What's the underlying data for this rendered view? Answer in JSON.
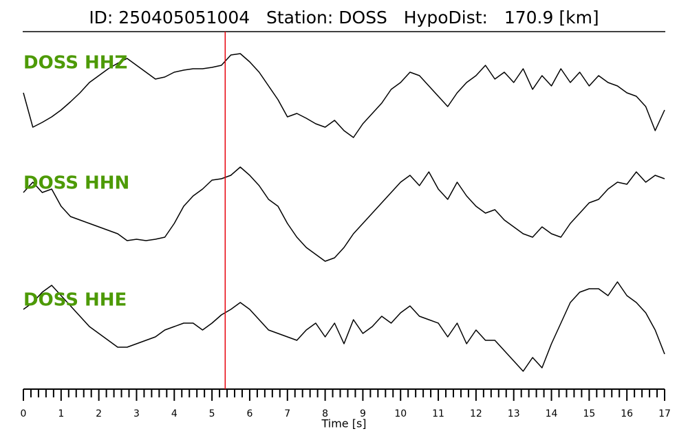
{
  "chart_data": {
    "type": "line",
    "title": "ID: 250405051004   Station: DOSS   HypoDist:   170.9 [km]",
    "xlabel": "Time [s]",
    "xlim": [
      0,
      17
    ],
    "xticks": [
      0,
      1,
      2,
      3,
      4,
      5,
      6,
      7,
      8,
      9,
      10,
      11,
      12,
      13,
      14,
      15,
      16,
      17
    ],
    "xminorticks": [
      0.2,
      0.4,
      0.6,
      0.8,
      1.2,
      1.4,
      1.6,
      1.8,
      2.2,
      2.4,
      2.6,
      2.8,
      3.2,
      3.4,
      3.6,
      3.8,
      4.2,
      4.4,
      4.6,
      4.8,
      5.2,
      5.4,
      5.6,
      5.8,
      6.2,
      6.4,
      6.6,
      6.8,
      7.2,
      7.4,
      7.6,
      7.8,
      8.2,
      8.4,
      8.6,
      8.8,
      9.2,
      9.4,
      9.6,
      9.8,
      10.2,
      10.4,
      10.6,
      10.8,
      11.2,
      11.4,
      11.6,
      11.8,
      12.2,
      12.4,
      12.6,
      12.8,
      13.2,
      13.4,
      13.6,
      13.8,
      14.2,
      14.4,
      14.6,
      14.8,
      15.2,
      15.4,
      15.6,
      15.8,
      16.2,
      16.4,
      16.6,
      16.8
    ],
    "ylim": [
      -80,
      80
    ],
    "label_color": "#4d9a06",
    "pick": {
      "value": 5.35,
      "color": "#e8000b"
    },
    "x": [
      0,
      0.25,
      0.5,
      0.75,
      1,
      1.25,
      1.5,
      1.75,
      2,
      2.25,
      2.5,
      2.75,
      3,
      3.25,
      3.5,
      3.75,
      4,
      4.25,
      4.5,
      4.75,
      5,
      5.25,
      5.5,
      5.75,
      6,
      6.25,
      6.5,
      6.75,
      7,
      7.25,
      7.5,
      7.75,
      8,
      8.25,
      8.5,
      8.75,
      9,
      9.25,
      9.5,
      9.75,
      10,
      10.25,
      10.5,
      10.75,
      11,
      11.25,
      11.5,
      11.75,
      12,
      12.25,
      12.5,
      12.75,
      13,
      13.25,
      13.5,
      13.75,
      14,
      14.25,
      14.5,
      14.75,
      15,
      15.25,
      15.5,
      15.75,
      16,
      16.25,
      16.5,
      16.75,
      17
    ],
    "series": [
      {
        "name": "DOSS HHZ",
        "color": "#000000",
        "values": [
          5,
          -45,
          -38,
          -30,
          -20,
          -8,
          5,
          20,
          30,
          40,
          48,
          55,
          45,
          35,
          25,
          28,
          35,
          38,
          40,
          40,
          42,
          45,
          60,
          62,
          50,
          35,
          15,
          -5,
          -30,
          -25,
          -32,
          -40,
          -45,
          -35,
          -50,
          -60,
          -40,
          -25,
          -10,
          10,
          20,
          35,
          30,
          15,
          0,
          -15,
          5,
          20,
          30,
          45,
          25,
          35,
          20,
          40,
          10,
          30,
          15,
          40,
          20,
          35,
          15,
          30,
          20,
          15,
          5,
          0,
          -15,
          -50,
          -20
        ]
      },
      {
        "name": "DOSS HHN",
        "color": "#000000",
        "values": [
          35,
          50,
          35,
          40,
          15,
          0,
          -5,
          -10,
          -15,
          -20,
          -25,
          -35,
          -33,
          -35,
          -33,
          -30,
          -10,
          15,
          30,
          40,
          53,
          55,
          60,
          72,
          60,
          45,
          25,
          15,
          -10,
          -30,
          -45,
          -55,
          -65,
          -60,
          -45,
          -25,
          -10,
          5,
          20,
          35,
          50,
          60,
          45,
          65,
          40,
          25,
          50,
          30,
          15,
          5,
          10,
          -5,
          -15,
          -25,
          -30,
          -15,
          -25,
          -30,
          -10,
          5,
          20,
          25,
          40,
          50,
          47,
          65,
          50,
          60,
          55
        ]
      },
      {
        "name": "DOSS HHE",
        "color": "#000000",
        "values": [
          35,
          45,
          60,
          70,
          55,
          40,
          25,
          10,
          0,
          -10,
          -20,
          -20,
          -15,
          -10,
          -5,
          5,
          10,
          15,
          15,
          5,
          15,
          27,
          35,
          45,
          35,
          20,
          5,
          0,
          -5,
          -10,
          5,
          15,
          -5,
          15,
          -15,
          20,
          0,
          10,
          25,
          15,
          30,
          40,
          25,
          20,
          15,
          -5,
          15,
          -15,
          5,
          -10,
          -10,
          -25,
          -40,
          -55,
          -35,
          -50,
          -15,
          15,
          45,
          60,
          65,
          65,
          55,
          75,
          55,
          45,
          30,
          5,
          -30
        ]
      }
    ]
  }
}
